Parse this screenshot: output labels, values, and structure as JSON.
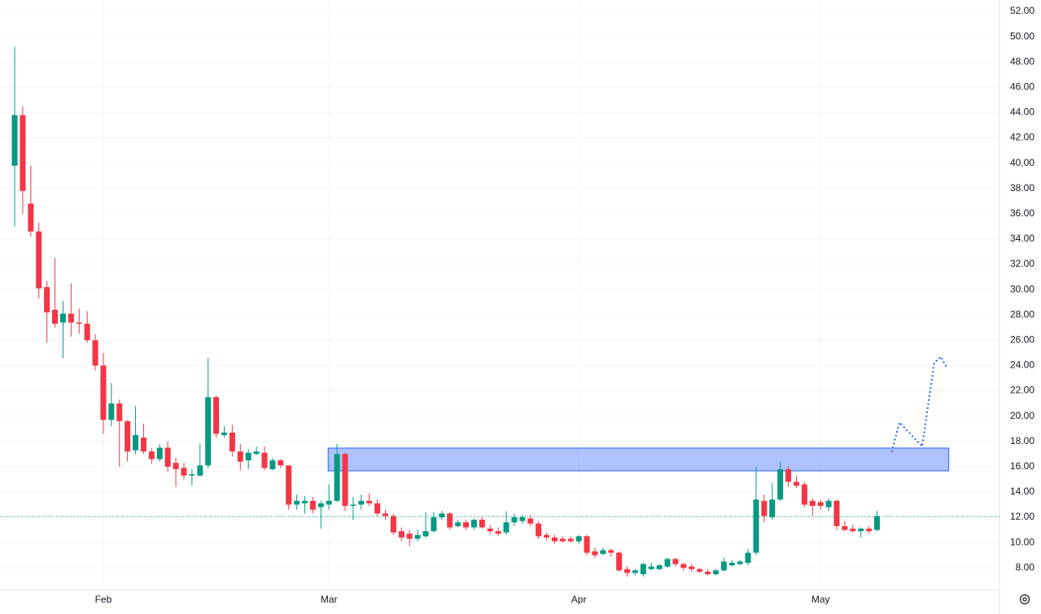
{
  "chart_data": {
    "type": "candlestick",
    "up_color": "#089981",
    "down_color": "#f23645",
    "open": [
      39.8,
      43.8,
      36.8,
      34.6,
      30.2,
      28.4,
      27.4,
      28.1,
      27.4,
      27.3,
      26.0,
      24.0,
      19.7,
      21.0,
      19.6,
      17.3,
      18.3,
      17.2,
      16.6,
      17.5,
      16.3,
      15.9,
      15.3,
      15.3,
      16.1,
      21.5,
      18.5,
      18.7,
      17.2,
      16.5,
      17.0,
      17.1,
      15.8,
      16.5,
      16.1,
      13.0,
      13.1,
      13.3,
      12.8,
      13.0,
      13.3,
      17.0,
      12.9,
      13.0,
      13.3,
      13.1,
      12.3,
      12.1,
      10.9,
      10.7,
      10.3,
      10.5,
      10.9,
      12.0,
      12.3,
      11.3,
      11.6,
      11.2,
      11.8,
      11.1,
      10.9,
      10.8,
      11.6,
      11.7,
      11.9,
      11.5,
      10.6,
      10.4,
      10.3,
      10.3,
      10.1,
      10.5,
      9.3,
      9.1,
      9.4,
      9.2,
      7.9,
      7.6,
      7.5,
      7.9,
      7.9,
      8.1,
      8.7,
      8.3,
      8.1,
      7.9,
      7.7,
      7.5,
      7.8,
      8.2,
      8.3,
      8.4,
      9.2,
      13.3,
      12.0,
      13.4,
      15.8,
      14.8,
      14.6,
      13.3,
      13.2,
      12.8,
      13.3,
      11.3,
      11.1,
      10.9,
      11.1,
      11.0
    ],
    "high": [
      49.2,
      44.5,
      39.8,
      35.3,
      30.7,
      32.5,
      29.1,
      30.5,
      28.5,
      28.3,
      26.5,
      25.0,
      22.6,
      21.3,
      19.7,
      20.8,
      19.4,
      17.5,
      17.8,
      18.0,
      16.7,
      16.3,
      15.8,
      17.8,
      24.6,
      21.6,
      19.2,
      19.3,
      17.8,
      17.4,
      17.6,
      17.6,
      16.7,
      16.6,
      16.1,
      13.8,
      13.7,
      13.6,
      13.3,
      14.6,
      17.8,
      17.1,
      13.6,
      13.8,
      13.9,
      13.4,
      12.6,
      12.3,
      11.2,
      11.0,
      11.0,
      12.4,
      12.4,
      12.5,
      12.4,
      11.8,
      11.8,
      11.9,
      12.0,
      11.4,
      11.2,
      12.5,
      12.3,
      12.2,
      12.2,
      11.7,
      10.8,
      10.6,
      10.5,
      10.5,
      10.6,
      10.6,
      9.6,
      9.6,
      9.5,
      9.3,
      8.1,
      7.9,
      8.4,
      8.4,
      8.3,
      8.8,
      8.8,
      8.4,
      8.3,
      8.0,
      7.9,
      7.9,
      8.8,
      8.6,
      8.6,
      9.5,
      16.0,
      13.8,
      14.7,
      16.4,
      16.0,
      15.3,
      14.8,
      13.5,
      13.4,
      13.5,
      13.4,
      11.7,
      11.4,
      11.2,
      11.3,
      12.5
    ],
    "low": [
      35.0,
      36.0,
      34.2,
      29.3,
      25.8,
      27.0,
      24.6,
      26.3,
      26.5,
      25.8,
      23.6,
      18.6,
      19.2,
      16.0,
      16.4,
      17.0,
      17.0,
      16.2,
      16.4,
      15.6,
      14.4,
      15.0,
      14.5,
      15.2,
      15.9,
      18.3,
      18.3,
      16.8,
      15.7,
      15.8,
      16.9,
      15.7,
      15.7,
      15.9,
      12.6,
      12.6,
      12.3,
      12.3,
      11.1,
      12.6,
      13.2,
      12.5,
      11.8,
      12.6,
      12.9,
      12.1,
      11.8,
      10.6,
      10.1,
      9.7,
      10.1,
      10.4,
      10.8,
      11.8,
      11.0,
      11.2,
      11.0,
      11.0,
      11.1,
      10.7,
      10.5,
      10.6,
      11.3,
      11.5,
      11.3,
      10.3,
      10.2,
      9.9,
      10.0,
      10.0,
      9.9,
      9.0,
      8.8,
      9.0,
      8.9,
      7.7,
      7.3,
      7.4,
      7.3,
      7.8,
      7.8,
      8.0,
      8.1,
      7.8,
      7.7,
      7.6,
      7.4,
      7.4,
      7.7,
      8.1,
      8.2,
      8.2,
      9.0,
      11.6,
      11.8,
      13.3,
      14.4,
      14.3,
      12.8,
      12.1,
      12.6,
      12.5,
      11.0,
      10.9,
      10.8,
      10.4,
      10.7,
      10.9
    ],
    "close": [
      43.8,
      37.8,
      34.6,
      30.1,
      28.2,
      27.3,
      28.1,
      27.4,
      27.3,
      26.0,
      24.0,
      19.7,
      21.0,
      19.6,
      17.2,
      18.5,
      17.2,
      16.6,
      17.5,
      16.0,
      15.8,
      15.3,
      15.4,
      16.1,
      21.5,
      18.6,
      18.7,
      17.2,
      16.4,
      17.1,
      17.2,
      15.9,
      16.5,
      16.1,
      13.0,
      13.3,
      13.3,
      12.6,
      13.1,
      13.3,
      17.0,
      12.9,
      13.0,
      13.3,
      13.1,
      12.3,
      12.1,
      10.8,
      10.4,
      10.3,
      10.6,
      10.9,
      12.0,
      12.3,
      11.2,
      11.6,
      11.2,
      11.8,
      11.2,
      10.9,
      10.7,
      11.6,
      12.0,
      12.0,
      11.5,
      10.5,
      10.4,
      10.1,
      10.1,
      10.1,
      10.5,
      9.2,
      9.0,
      9.4,
      9.2,
      7.8,
      7.6,
      7.8,
      8.3,
      8.1,
      8.2,
      8.7,
      8.3,
      8.0,
      7.9,
      7.7,
      7.5,
      7.8,
      8.5,
      8.4,
      8.5,
      9.2,
      13.4,
      12.1,
      13.4,
      15.8,
      14.8,
      14.5,
      13.0,
      12.9,
      12.9,
      13.3,
      11.3,
      11.0,
      10.9,
      11.1,
      10.9,
      12.1
    ],
    "xlim": [
      -1.82,
      122.2
    ],
    "xticks": [
      {
        "value": 11,
        "label": "Feb"
      },
      {
        "value": 39,
        "label": "Mar"
      },
      {
        "value": 70,
        "label": "Apr"
      },
      {
        "value": 100,
        "label": "May"
      }
    ],
    "ylim": [
      6.28,
      52.9
    ],
    "yticks": [
      {
        "value": 8,
        "label": "8.00"
      },
      {
        "value": 10,
        "label": "10.00"
      },
      {
        "value": 12,
        "label": "12.00"
      },
      {
        "value": 14,
        "label": "14.00"
      },
      {
        "value": 16,
        "label": "16.00"
      },
      {
        "value": 18,
        "label": "18.00"
      },
      {
        "value": 20,
        "label": "20.00"
      },
      {
        "value": 22,
        "label": "22.00"
      },
      {
        "value": 24,
        "label": "24.00"
      },
      {
        "value": 26,
        "label": "26.00"
      },
      {
        "value": 28,
        "label": "28.00"
      },
      {
        "value": 30,
        "label": "30.00"
      },
      {
        "value": 32,
        "label": "32.00"
      },
      {
        "value": 34,
        "label": "34.00"
      },
      {
        "value": 36,
        "label": "36.00"
      },
      {
        "value": 38,
        "label": "38.00"
      },
      {
        "value": 40,
        "label": "40.00"
      },
      {
        "value": 42,
        "label": "42.00"
      },
      {
        "value": 44,
        "label": "44.00"
      },
      {
        "value": 46,
        "label": "46.00"
      },
      {
        "value": 48,
        "label": "48.00"
      },
      {
        "value": 50,
        "label": "50.00"
      },
      {
        "value": 52,
        "label": "52.00"
      }
    ],
    "grid": true,
    "price_line": {
      "value": 12.06,
      "color": "#089981"
    },
    "zone": {
      "top": 17.47,
      "bottom": 15.67,
      "start": 38.9,
      "end": 115.9,
      "color": "#2962ff"
    },
    "projection": {
      "color": "#2962ff",
      "x": [
        108.8,
        109.8,
        112.6,
        114.1,
        114.9,
        115.6
      ],
      "y": [
        17.15,
        19.5,
        17.6,
        24.2,
        24.7,
        23.9
      ]
    }
  }
}
